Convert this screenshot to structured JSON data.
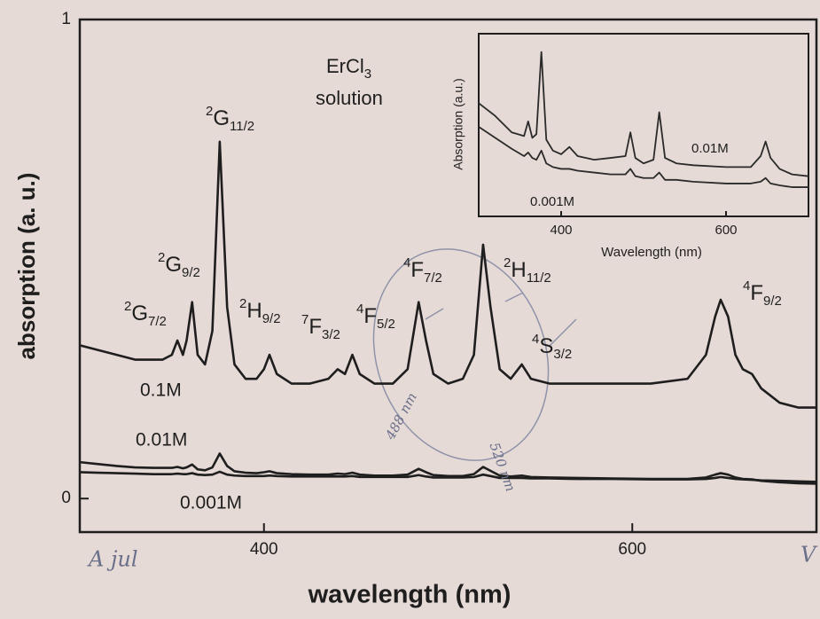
{
  "chart_data": [
    {
      "type": "line",
      "xlabel": "wavelength (nm)",
      "ylabel": "absorption (a. u.)",
      "xlim": [
        300,
        700
      ],
      "xticks": [
        400,
        600
      ],
      "ylim": [
        -0.07,
        1
      ],
      "yticks": [
        0,
        1
      ],
      "x": [
        300,
        310,
        320,
        330,
        340,
        345,
        350,
        353,
        356,
        358,
        361,
        364,
        368,
        372,
        376,
        380,
        384,
        390,
        396,
        400,
        403,
        407,
        415,
        425,
        435,
        440,
        444,
        448,
        452,
        460,
        470,
        478,
        484,
        488,
        492,
        500,
        508,
        514,
        519,
        523,
        528,
        534,
        540,
        545,
        555,
        570,
        590,
        610,
        630,
        640,
        645,
        648,
        652,
        656,
        660,
        665,
        670,
        680,
        690,
        700
      ],
      "series": [
        {
          "name": "0.1M",
          "color": "#1e1e1e",
          "values": [
            0.32,
            0.31,
            0.3,
            0.29,
            0.29,
            0.29,
            0.3,
            0.33,
            0.3,
            0.33,
            0.41,
            0.3,
            0.28,
            0.35,
            0.745,
            0.4,
            0.28,
            0.25,
            0.25,
            0.27,
            0.3,
            0.26,
            0.24,
            0.24,
            0.25,
            0.27,
            0.26,
            0.3,
            0.26,
            0.24,
            0.24,
            0.27,
            0.41,
            0.33,
            0.26,
            0.24,
            0.25,
            0.3,
            0.53,
            0.4,
            0.27,
            0.25,
            0.28,
            0.25,
            0.24,
            0.24,
            0.24,
            0.24,
            0.25,
            0.3,
            0.38,
            0.415,
            0.38,
            0.3,
            0.27,
            0.26,
            0.23,
            0.2,
            0.19,
            0.19
          ]
        },
        {
          "name": "0.01M",
          "color": "#1e1e1e",
          "values": [
            0.076,
            0.072,
            0.068,
            0.065,
            0.064,
            0.064,
            0.064,
            0.066,
            0.063,
            0.065,
            0.071,
            0.061,
            0.059,
            0.065,
            0.094,
            0.068,
            0.057,
            0.054,
            0.053,
            0.055,
            0.057,
            0.053,
            0.051,
            0.05,
            0.05,
            0.052,
            0.051,
            0.054,
            0.05,
            0.048,
            0.048,
            0.05,
            0.062,
            0.055,
            0.049,
            0.047,
            0.047,
            0.051,
            0.066,
            0.058,
            0.048,
            0.046,
            0.048,
            0.045,
            0.044,
            0.043,
            0.042,
            0.041,
            0.041,
            0.044,
            0.05,
            0.053,
            0.05,
            0.044,
            0.041,
            0.04,
            0.037,
            0.034,
            0.032,
            0.031
          ]
        },
        {
          "name": "0.001M",
          "color": "#1e1e1e",
          "values": [
            0.055,
            0.054,
            0.053,
            0.052,
            0.051,
            0.051,
            0.051,
            0.052,
            0.051,
            0.051,
            0.053,
            0.05,
            0.049,
            0.05,
            0.056,
            0.05,
            0.048,
            0.047,
            0.047,
            0.047,
            0.048,
            0.047,
            0.046,
            0.046,
            0.046,
            0.046,
            0.046,
            0.047,
            0.045,
            0.045,
            0.045,
            0.045,
            0.049,
            0.046,
            0.044,
            0.044,
            0.044,
            0.045,
            0.05,
            0.047,
            0.043,
            0.043,
            0.043,
            0.042,
            0.042,
            0.041,
            0.041,
            0.04,
            0.04,
            0.041,
            0.043,
            0.045,
            0.043,
            0.041,
            0.04,
            0.039,
            0.038,
            0.037,
            0.036,
            0.035
          ]
        }
      ],
      "annotations": [
        {
          "sup": "2",
          "text": "G",
          "sub": "7/2"
        },
        {
          "sup": "2",
          "text": "G",
          "sub": "9/2"
        },
        {
          "sup": "2",
          "text": "G",
          "sub": "11/2"
        },
        {
          "sup": "2",
          "text": "H",
          "sub": "9/2"
        },
        {
          "sup": "7",
          "text": "F",
          "sub": "3/2"
        },
        {
          "sup": "4",
          "text": "F",
          "sub": "5/2"
        },
        {
          "sup": "4",
          "text": "F",
          "sub": "7/2"
        },
        {
          "sup": "2",
          "text": "H",
          "sub": "11/2"
        },
        {
          "sup": "4",
          "text": "S",
          "sub": "3/2"
        },
        {
          "sup": "4",
          "text": "F",
          "sub": "9/2"
        }
      ],
      "sample": {
        "text": "ErCl",
        "sub": "3",
        "line2": "solution"
      },
      "handwritten": [
        "A jul",
        "488 nm",
        "520 nm",
        "V"
      ]
    },
    {
      "type": "line",
      "xlabel": "Wavelength (nm)",
      "ylabel": "Absorption (a.u.)",
      "xlim": [
        300,
        700
      ],
      "xticks": [
        400,
        600
      ],
      "ylim": [
        0,
        1
      ],
      "x": [
        300,
        320,
        340,
        355,
        360,
        365,
        370,
        376,
        382,
        390,
        400,
        410,
        420,
        440,
        460,
        478,
        484,
        490,
        500,
        512,
        519,
        526,
        540,
        560,
        600,
        630,
        642,
        648,
        654,
        665,
        680,
        700
      ],
      "series": [
        {
          "name": "0.01M",
          "color": "#2a2a2a",
          "values": [
            0.62,
            0.55,
            0.46,
            0.44,
            0.52,
            0.43,
            0.45,
            0.9,
            0.42,
            0.36,
            0.34,
            0.38,
            0.33,
            0.31,
            0.32,
            0.33,
            0.46,
            0.32,
            0.29,
            0.31,
            0.57,
            0.32,
            0.29,
            0.28,
            0.27,
            0.27,
            0.33,
            0.41,
            0.32,
            0.26,
            0.23,
            0.22
          ]
        },
        {
          "name": "0.001M",
          "color": "#2a2a2a",
          "values": [
            0.49,
            0.43,
            0.37,
            0.33,
            0.35,
            0.32,
            0.31,
            0.36,
            0.29,
            0.27,
            0.26,
            0.26,
            0.25,
            0.24,
            0.23,
            0.23,
            0.26,
            0.22,
            0.21,
            0.21,
            0.24,
            0.2,
            0.2,
            0.19,
            0.18,
            0.18,
            0.19,
            0.21,
            0.18,
            0.17,
            0.16,
            0.16
          ]
        }
      ]
    }
  ]
}
